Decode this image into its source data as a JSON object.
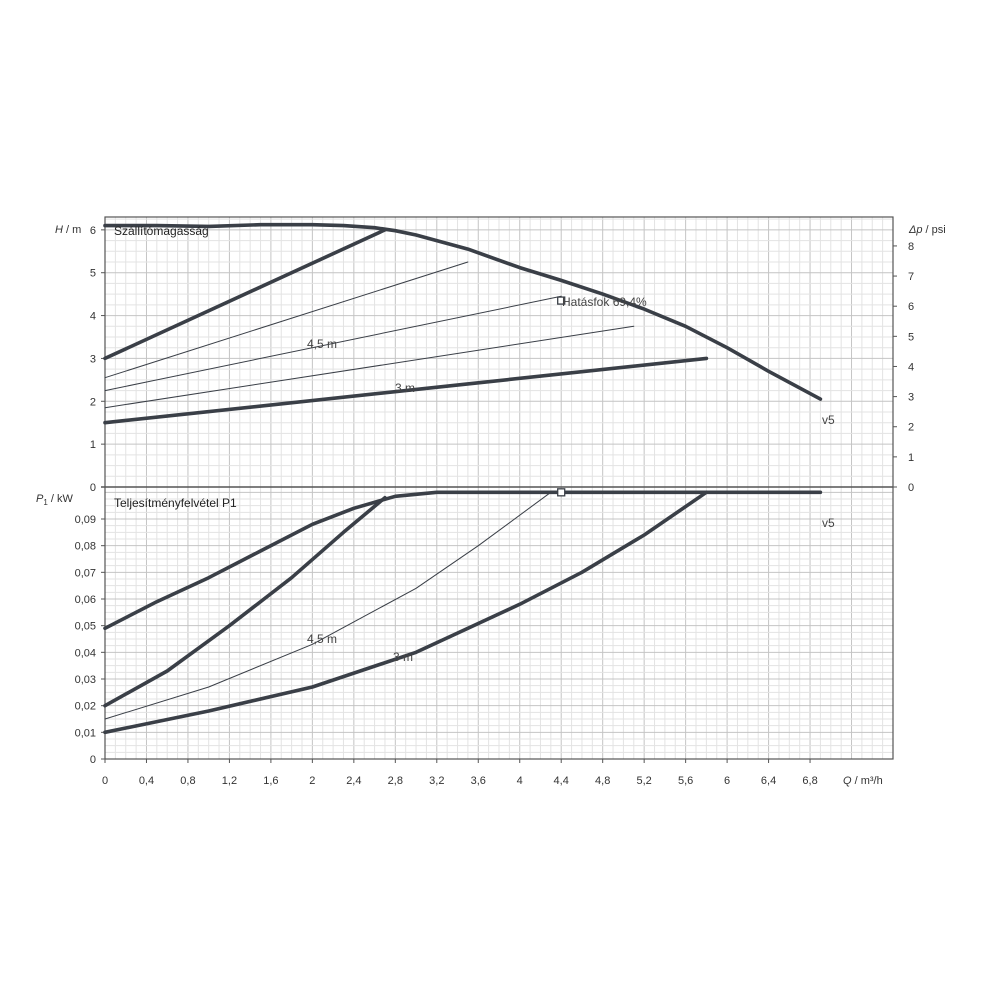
{
  "chart_data": [
    {
      "type": "line",
      "title": "Szállítómagasság",
      "ylabel_main": "H",
      "ylabel_unit": "m",
      "y2label_main": "Δp",
      "y2label_unit": "psi",
      "xlabel_main": "Q",
      "xlabel_unit": "m³/h",
      "xlim": [
        0,
        7.6
      ],
      "ylim": [
        0,
        6.3
      ],
      "y2lim": [
        0,
        8.96
      ],
      "grid": true,
      "x_ticks": [
        "0",
        "0,4",
        "0,8",
        "1,2",
        "1,6",
        "2",
        "2,4",
        "2,8",
        "3,2",
        "3,6",
        "4",
        "4,4",
        "4,8",
        "5,2",
        "5,6",
        "6",
        "6,4",
        "6,8"
      ],
      "y_ticks": [
        "0",
        "1",
        "2",
        "3",
        "4",
        "5",
        "6"
      ],
      "y2_ticks": [
        "0",
        "1",
        "2",
        "3",
        "4",
        "5",
        "6",
        "7",
        "8"
      ],
      "annotations": {
        "efficiency": "Hatásfok  69,4%",
        "curve_45": "4,5 m",
        "curve_3": "3 m",
        "curve_v5": "v5"
      },
      "efficiency_point": {
        "x": 4.4,
        "y": 4.35
      },
      "series": [
        {
          "style": "thick",
          "label": "v5",
          "x": [
            0,
            0.5,
            1.0,
            1.5,
            2.0,
            2.3,
            2.6,
            2.8,
            3.0,
            3.5,
            4.0,
            4.4,
            4.8,
            5.2,
            5.6,
            6.0,
            6.4,
            6.9
          ],
          "y": [
            6.1,
            6.1,
            6.08,
            6.12,
            6.12,
            6.1,
            6.05,
            5.98,
            5.88,
            5.55,
            5.12,
            4.82,
            4.5,
            4.15,
            3.75,
            3.25,
            2.7,
            2.05
          ]
        },
        {
          "style": "thick",
          "x": [
            0,
            2.7
          ],
          "y": [
            3.0,
            6.0
          ]
        },
        {
          "style": "thin",
          "x": [
            0,
            3.5
          ],
          "y": [
            2.55,
            5.25
          ]
        },
        {
          "style": "thin",
          "x": [
            0,
            4.4
          ],
          "y": [
            2.25,
            4.45
          ]
        },
        {
          "style": "thin",
          "x": [
            0,
            5.1
          ],
          "y": [
            1.85,
            3.75
          ]
        },
        {
          "style": "thick",
          "x": [
            0,
            5.8
          ],
          "y": [
            1.5,
            3.0
          ]
        }
      ]
    },
    {
      "type": "line",
      "title": "Teljesítményfelvétel P1",
      "ylabel_main": "P",
      "ylabel_sub": "1",
      "ylabel_unit": "kW",
      "xlim": [
        0,
        7.6
      ],
      "ylim": [
        0,
        0.102
      ],
      "grid": true,
      "y_ticks": [
        "0",
        "0,01",
        "0,02",
        "0,03",
        "0,04",
        "0,05",
        "0,06",
        "0,07",
        "0,08",
        "0,09"
      ],
      "annotations": {
        "curve_45": "4,5 m",
        "curve_3": "3 m",
        "curve_v5": "v5"
      },
      "efficiency_point": {
        "x": 4.4,
        "y": 0.1
      },
      "series": [
        {
          "style": "thick",
          "label": "v5",
          "x": [
            0,
            0.5,
            1.0,
            1.5,
            2.0,
            2.4,
            2.8,
            3.2,
            3.6,
            4.0,
            4.4,
            5.0,
            5.6,
            6.0,
            6.4,
            6.9
          ],
          "y": [
            0.049,
            0.059,
            0.068,
            0.078,
            0.088,
            0.094,
            0.0985,
            0.1,
            0.1,
            0.1,
            0.1,
            0.1,
            0.1,
            0.1,
            0.1,
            0.1
          ]
        },
        {
          "style": "thick",
          "x": [
            0,
            0.6,
            1.2,
            1.8,
            2.3,
            2.7
          ],
          "y": [
            0.02,
            0.033,
            0.05,
            0.068,
            0.085,
            0.098
          ]
        },
        {
          "style": "thin",
          "x": [
            0,
            1.0,
            2.0,
            3.0,
            3.6,
            4.3
          ],
          "y": [
            0.015,
            0.027,
            0.043,
            0.064,
            0.08,
            0.1
          ]
        },
        {
          "style": "thick",
          "x": [
            0,
            1.0,
            2.0,
            3.0,
            4.0,
            4.6,
            5.2,
            5.8
          ],
          "y": [
            0.01,
            0.018,
            0.027,
            0.04,
            0.058,
            0.07,
            0.084,
            0.1
          ]
        }
      ]
    }
  ]
}
